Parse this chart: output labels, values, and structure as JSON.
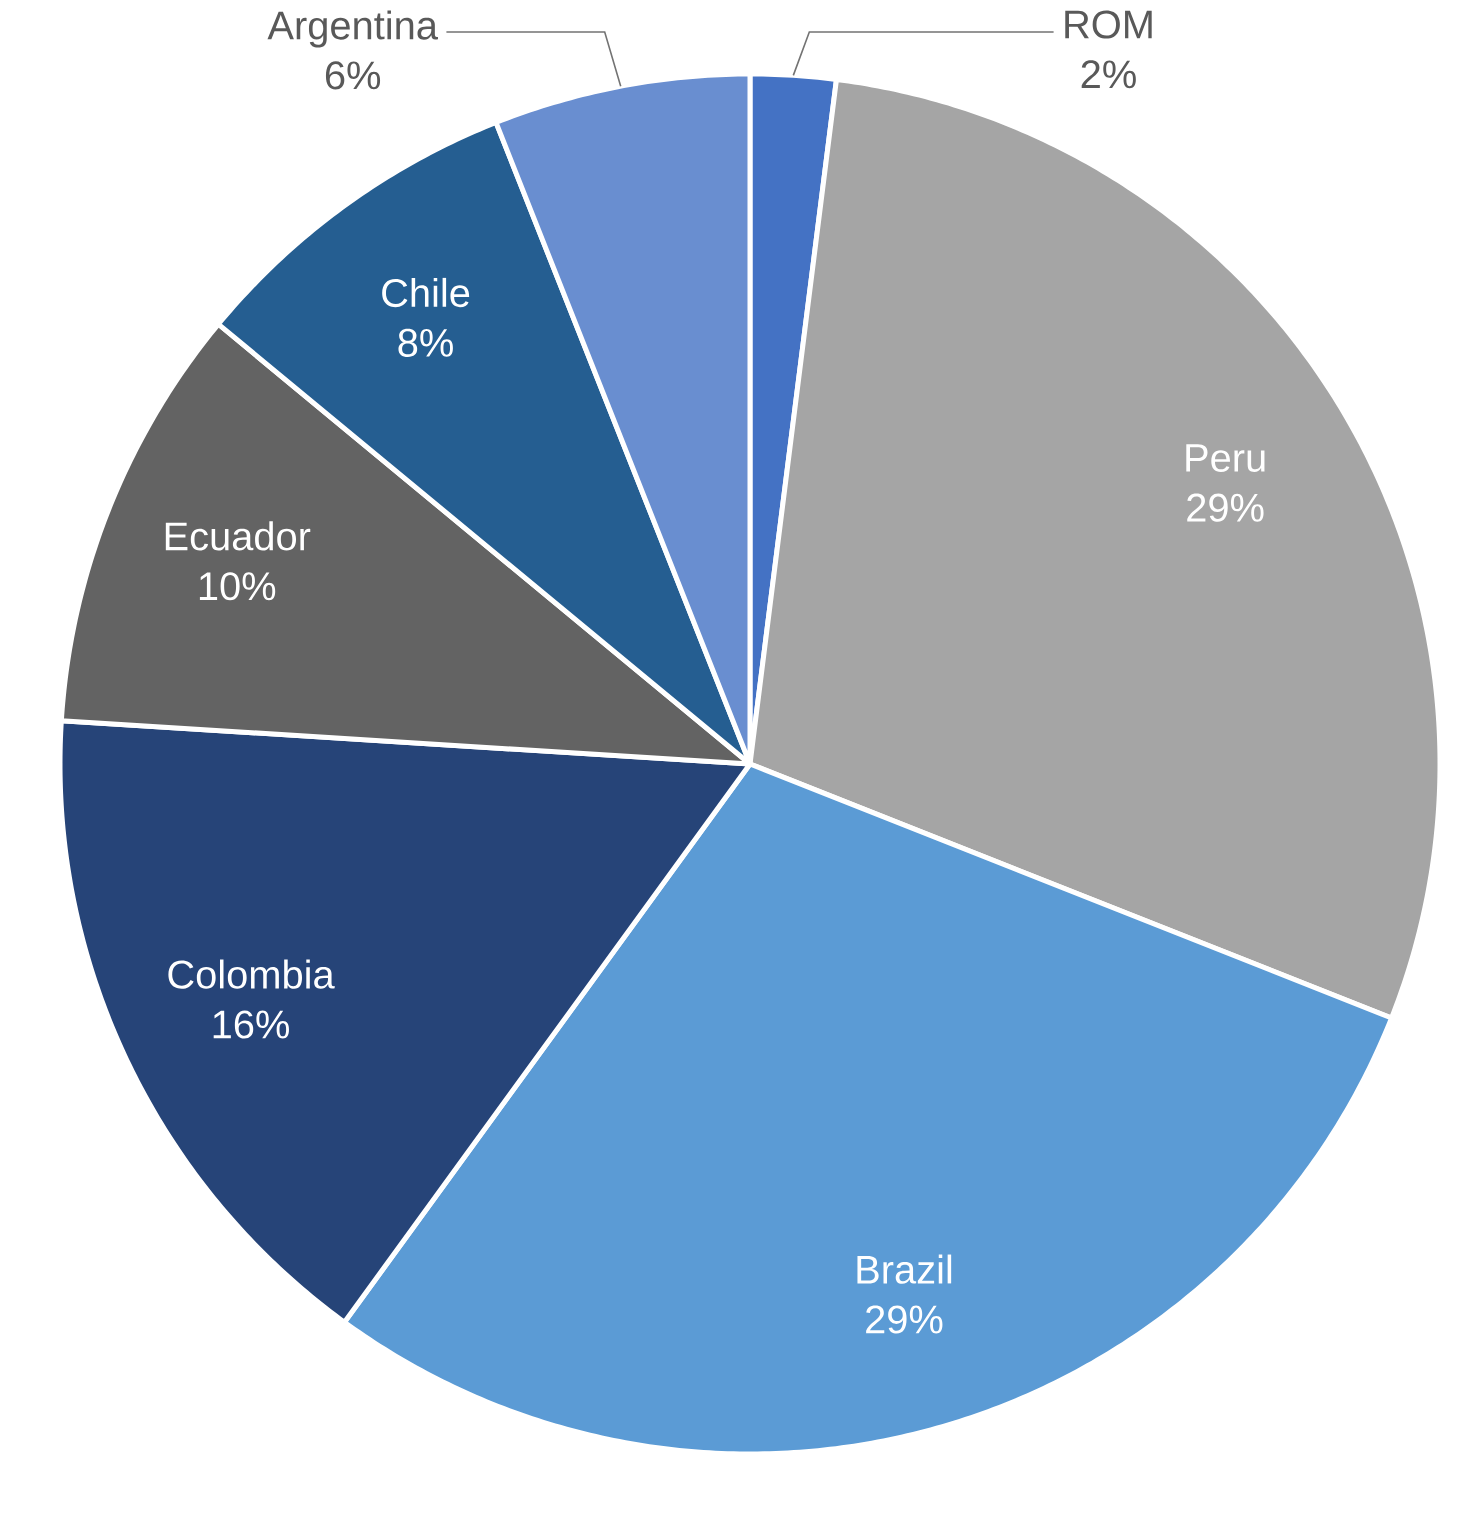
{
  "chart_data": {
    "type": "pie",
    "categories": [
      "ROM",
      "Peru",
      "Brazil",
      "Colombia",
      "Ecuador",
      "Chile",
      "Argentina"
    ],
    "values": [
      2,
      29,
      29,
      16,
      10,
      8,
      6
    ],
    "colors": [
      "#4472c4",
      "#a5a5a5",
      "#5b9bd5",
      "#264478",
      "#636363",
      "#255e91",
      "#698ed0"
    ],
    "value_labels": [
      "2%",
      "29%",
      "29%",
      "16%",
      "10%",
      "8%",
      "6%"
    ]
  }
}
